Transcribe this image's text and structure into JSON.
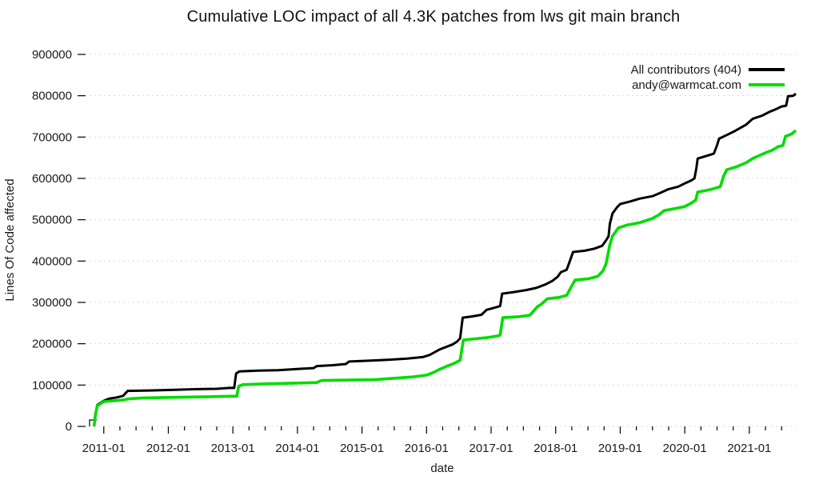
{
  "chart_data": {
    "type": "line",
    "title": "Cumulative LOC impact of all 4.3K patches from lws git main branch",
    "xlabel": "date",
    "ylabel": "Lines Of Code affected",
    "xrange": [
      2010.78,
      2021.72
    ],
    "yrange": [
      0,
      900000
    ],
    "grid": "horizontal-dotted",
    "legend_position": "top-right-inside",
    "xminor_step": 0.25,
    "xminor_start": 2010.75,
    "xticks": [
      {
        "t": 2011,
        "label": "2011-01"
      },
      {
        "t": 2012,
        "label": "2012-01"
      },
      {
        "t": 2013,
        "label": "2013-01"
      },
      {
        "t": 2014,
        "label": "2014-01"
      },
      {
        "t": 2015,
        "label": "2015-01"
      },
      {
        "t": 2016,
        "label": "2016-01"
      },
      {
        "t": 2017,
        "label": "2017-01"
      },
      {
        "t": 2018,
        "label": "2018-01"
      },
      {
        "t": 2019,
        "label": "2019-01"
      },
      {
        "t": 2020,
        "label": "2020-01"
      },
      {
        "t": 2021,
        "label": "2021-01"
      }
    ],
    "yticks": [
      {
        "v": 0,
        "label": "0"
      },
      {
        "v": 100000,
        "label": "100000"
      },
      {
        "v": 200000,
        "label": "200000"
      },
      {
        "v": 300000,
        "label": "300000"
      },
      {
        "v": 400000,
        "label": "400000"
      },
      {
        "v": 500000,
        "label": "500000"
      },
      {
        "v": 600000,
        "label": "600000"
      },
      {
        "v": 700000,
        "label": "700000"
      },
      {
        "v": 800000,
        "label": "800000"
      },
      {
        "v": 900000,
        "label": "900000"
      }
    ],
    "series": [
      {
        "name": "All contributors (404)",
        "color": "#000000",
        "width": 3,
        "points": [
          [
            2010.85,
            0
          ],
          [
            2010.87,
            30000
          ],
          [
            2010.9,
            52000
          ],
          [
            2011.0,
            62000
          ],
          [
            2011.08,
            67000
          ],
          [
            2011.2,
            70000
          ],
          [
            2011.3,
            74000
          ],
          [
            2011.37,
            86000
          ],
          [
            2011.7,
            87000
          ],
          [
            2012.0,
            88000
          ],
          [
            2012.4,
            90000
          ],
          [
            2012.75,
            91000
          ],
          [
            2012.95,
            93000
          ],
          [
            2013.02,
            93000
          ],
          [
            2013.05,
            128000
          ],
          [
            2013.1,
            133000
          ],
          [
            2013.4,
            135000
          ],
          [
            2013.7,
            136000
          ],
          [
            2014.0,
            139000
          ],
          [
            2014.25,
            141000
          ],
          [
            2014.3,
            146000
          ],
          [
            2014.55,
            148000
          ],
          [
            2014.75,
            151000
          ],
          [
            2014.8,
            157000
          ],
          [
            2015.1,
            159000
          ],
          [
            2015.4,
            161000
          ],
          [
            2015.7,
            164000
          ],
          [
            2015.95,
            168000
          ],
          [
            2016.05,
            173000
          ],
          [
            2016.12,
            179000
          ],
          [
            2016.2,
            186000
          ],
          [
            2016.3,
            192000
          ],
          [
            2016.4,
            198000
          ],
          [
            2016.47,
            205000
          ],
          [
            2016.52,
            213000
          ],
          [
            2016.56,
            263000
          ],
          [
            2016.7,
            266000
          ],
          [
            2016.85,
            270000
          ],
          [
            2016.93,
            282000
          ],
          [
            2017.05,
            287000
          ],
          [
            2017.14,
            291000
          ],
          [
            2017.17,
            321000
          ],
          [
            2017.35,
            325000
          ],
          [
            2017.55,
            330000
          ],
          [
            2017.7,
            335000
          ],
          [
            2017.85,
            344000
          ],
          [
            2017.95,
            352000
          ],
          [
            2018.03,
            362000
          ],
          [
            2018.08,
            373000
          ],
          [
            2018.17,
            379000
          ],
          [
            2018.22,
            400000
          ],
          [
            2018.27,
            422000
          ],
          [
            2018.45,
            425000
          ],
          [
            2018.6,
            430000
          ],
          [
            2018.72,
            437000
          ],
          [
            2018.78,
            450000
          ],
          [
            2018.82,
            460000
          ],
          [
            2018.84,
            490000
          ],
          [
            2018.88,
            515000
          ],
          [
            2018.95,
            530000
          ],
          [
            2019.0,
            538000
          ],
          [
            2019.15,
            544000
          ],
          [
            2019.3,
            551000
          ],
          [
            2019.5,
            557000
          ],
          [
            2019.62,
            565000
          ],
          [
            2019.75,
            574000
          ],
          [
            2019.9,
            580000
          ],
          [
            2020.0,
            588000
          ],
          [
            2020.1,
            595000
          ],
          [
            2020.15,
            600000
          ],
          [
            2020.18,
            625000
          ],
          [
            2020.2,
            648000
          ],
          [
            2020.35,
            655000
          ],
          [
            2020.45,
            660000
          ],
          [
            2020.5,
            680000
          ],
          [
            2020.53,
            696000
          ],
          [
            2020.65,
            705000
          ],
          [
            2020.78,
            715000
          ],
          [
            2020.95,
            730000
          ],
          [
            2021.05,
            744000
          ],
          [
            2021.2,
            752000
          ],
          [
            2021.3,
            760000
          ],
          [
            2021.42,
            768000
          ],
          [
            2021.5,
            774000
          ],
          [
            2021.57,
            776000
          ],
          [
            2021.6,
            799000
          ],
          [
            2021.68,
            800000
          ],
          [
            2021.72,
            805000
          ]
        ]
      },
      {
        "name": "andy@warmcat.com",
        "color": "#00dc00",
        "width": 3.6,
        "points": [
          [
            2010.85,
            0
          ],
          [
            2010.87,
            28000
          ],
          [
            2010.9,
            50000
          ],
          [
            2011.0,
            60000
          ],
          [
            2011.15,
            62000
          ],
          [
            2011.3,
            64000
          ],
          [
            2011.4,
            67000
          ],
          [
            2011.6,
            69000
          ],
          [
            2012.0,
            70000
          ],
          [
            2012.5,
            71500
          ],
          [
            2012.95,
            73000
          ],
          [
            2013.06,
            73000
          ],
          [
            2013.09,
            97000
          ],
          [
            2013.15,
            101000
          ],
          [
            2013.5,
            103000
          ],
          [
            2014.0,
            105000
          ],
          [
            2014.3,
            106000
          ],
          [
            2014.37,
            111000
          ],
          [
            2014.8,
            112000
          ],
          [
            2015.2,
            113000
          ],
          [
            2015.55,
            117000
          ],
          [
            2015.8,
            120000
          ],
          [
            2016.0,
            124000
          ],
          [
            2016.1,
            130000
          ],
          [
            2016.2,
            138000
          ],
          [
            2016.32,
            146000
          ],
          [
            2016.42,
            152000
          ],
          [
            2016.52,
            160000
          ],
          [
            2016.57,
            209000
          ],
          [
            2016.75,
            212000
          ],
          [
            2016.95,
            215000
          ],
          [
            2017.1,
            219000
          ],
          [
            2017.14,
            221000
          ],
          [
            2017.18,
            263000
          ],
          [
            2017.4,
            265000
          ],
          [
            2017.6,
            269000
          ],
          [
            2017.72,
            290000
          ],
          [
            2017.78,
            296000
          ],
          [
            2017.87,
            309000
          ],
          [
            2018.05,
            312000
          ],
          [
            2018.17,
            317000
          ],
          [
            2018.25,
            340000
          ],
          [
            2018.3,
            354000
          ],
          [
            2018.5,
            357000
          ],
          [
            2018.65,
            363000
          ],
          [
            2018.73,
            376000
          ],
          [
            2018.78,
            393000
          ],
          [
            2018.84,
            440000
          ],
          [
            2018.88,
            460000
          ],
          [
            2018.97,
            480000
          ],
          [
            2019.1,
            487000
          ],
          [
            2019.3,
            493000
          ],
          [
            2019.5,
            503000
          ],
          [
            2019.6,
            512000
          ],
          [
            2019.68,
            522000
          ],
          [
            2019.85,
            527000
          ],
          [
            2020.0,
            532000
          ],
          [
            2020.1,
            540000
          ],
          [
            2020.17,
            548000
          ],
          [
            2020.2,
            567000
          ],
          [
            2020.4,
            573000
          ],
          [
            2020.55,
            580000
          ],
          [
            2020.6,
            605000
          ],
          [
            2020.65,
            621000
          ],
          [
            2020.8,
            628000
          ],
          [
            2020.95,
            638000
          ],
          [
            2021.05,
            648000
          ],
          [
            2021.15,
            655000
          ],
          [
            2021.25,
            662000
          ],
          [
            2021.35,
            668000
          ],
          [
            2021.45,
            677000
          ],
          [
            2021.52,
            680000
          ],
          [
            2021.56,
            702000
          ],
          [
            2021.65,
            707000
          ],
          [
            2021.72,
            716000
          ]
        ]
      }
    ]
  },
  "colors": {
    "background": "#ffffff",
    "gridline": "#c9c9c9",
    "tick": "#000000",
    "text": "#1a1a1a",
    "series_black": "#000000",
    "series_green": "#00dc00"
  }
}
